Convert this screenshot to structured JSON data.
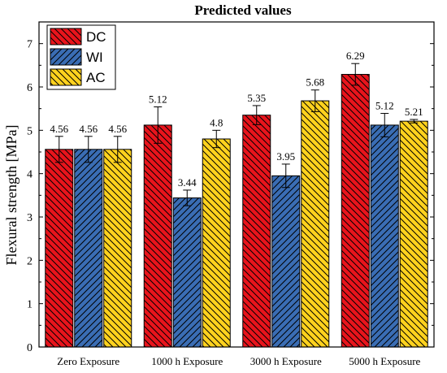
{
  "chart_data": {
    "type": "bar",
    "title": "Predicted values",
    "xlabel": "",
    "ylabel": "Flexural strength [MPa]",
    "ylim": [
      0,
      7.5
    ],
    "yticks": [
      0,
      1,
      2,
      3,
      4,
      5,
      6,
      7
    ],
    "categories": [
      "Zero Exposure",
      "1000 h Exposure",
      "3000 h Exposure",
      "5000 h Exposure"
    ],
    "series": [
      {
        "name": "DC",
        "color": "#e8141c",
        "values": [
          4.56,
          5.12,
          5.35,
          6.29
        ],
        "errors": [
          0.3,
          0.42,
          0.22,
          0.25
        ],
        "labels": [
          "4.56",
          "5.12",
          "5.35",
          "6.29"
        ]
      },
      {
        "name": "WI",
        "color": "#3a6db4",
        "values": [
          4.56,
          3.44,
          3.95,
          5.12
        ],
        "errors": [
          0.3,
          0.18,
          0.27,
          0.27
        ],
        "labels": [
          "4.56",
          "3.44",
          "3.95",
          "5.12"
        ]
      },
      {
        "name": "AC",
        "color": "#ffd21e",
        "values": [
          4.56,
          4.8,
          5.68,
          5.21
        ],
        "errors": [
          0.3,
          0.2,
          0.25,
          0.04
        ],
        "labels": [
          "4.56",
          "4.8",
          "5.68",
          "5.21"
        ]
      }
    ],
    "legend_position": "top-left",
    "grid": false
  }
}
